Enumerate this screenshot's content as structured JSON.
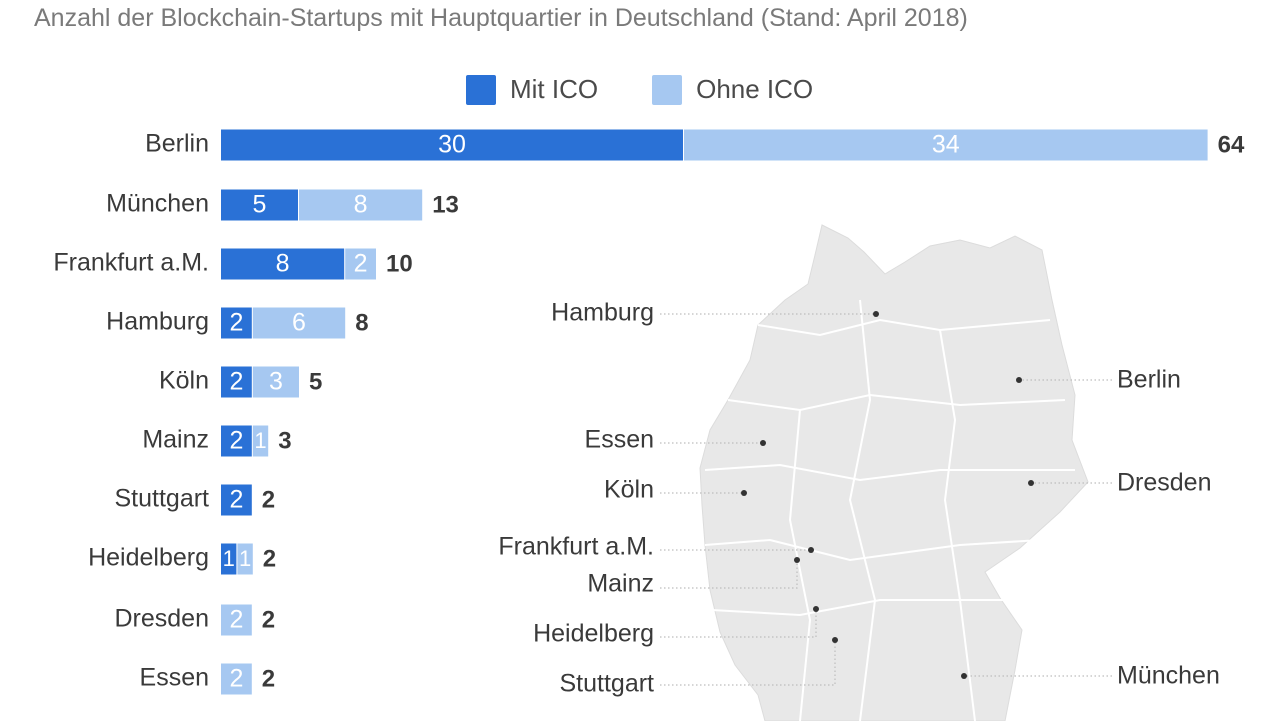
{
  "colors": {
    "with_ico": "#2a71d6",
    "without_ico": "#a6c8f1",
    "map_fill": "#e8e8e8",
    "map_border": "#ffffff",
    "text": "#3a3a3a",
    "leader": "#bdbdbd"
  },
  "header": {
    "subtitle": "Anzahl der Blockchain-Startups mit Hauptquartier in Deutschland (Stand: April 2018)"
  },
  "legend": {
    "with_ico": "Mit ICO",
    "without_ico": "Ohne ICO"
  },
  "chart_data": {
    "type": "bar",
    "orientation": "horizontal",
    "stacked": true,
    "title": "Anzahl der Blockchain-Startups mit Hauptquartier in Deutschland (Stand: April 2018)",
    "categories": [
      "Berlin",
      "München",
      "Frankfurt a.M.",
      "Hamburg",
      "Köln",
      "Mainz",
      "Stuttgart",
      "Heidelberg",
      "Dresden",
      "Essen"
    ],
    "series": [
      {
        "name": "Mit ICO",
        "values": [
          30,
          5,
          8,
          2,
          2,
          2,
          2,
          1,
          0,
          0
        ]
      },
      {
        "name": "Ohne ICO",
        "values": [
          34,
          8,
          2,
          6,
          3,
          1,
          0,
          1,
          2,
          2
        ]
      }
    ],
    "totals": [
      64,
      13,
      10,
      8,
      5,
      3,
      2,
      2,
      2,
      2
    ],
    "legend_position": "top",
    "grid": false,
    "xlim": [
      0,
      64
    ]
  },
  "map": {
    "labels": [
      "Hamburg",
      "Berlin",
      "Essen",
      "Dresden",
      "Köln",
      "Frankfurt a.M.",
      "Mainz",
      "Heidelberg",
      "Stuttgart",
      "München"
    ]
  }
}
